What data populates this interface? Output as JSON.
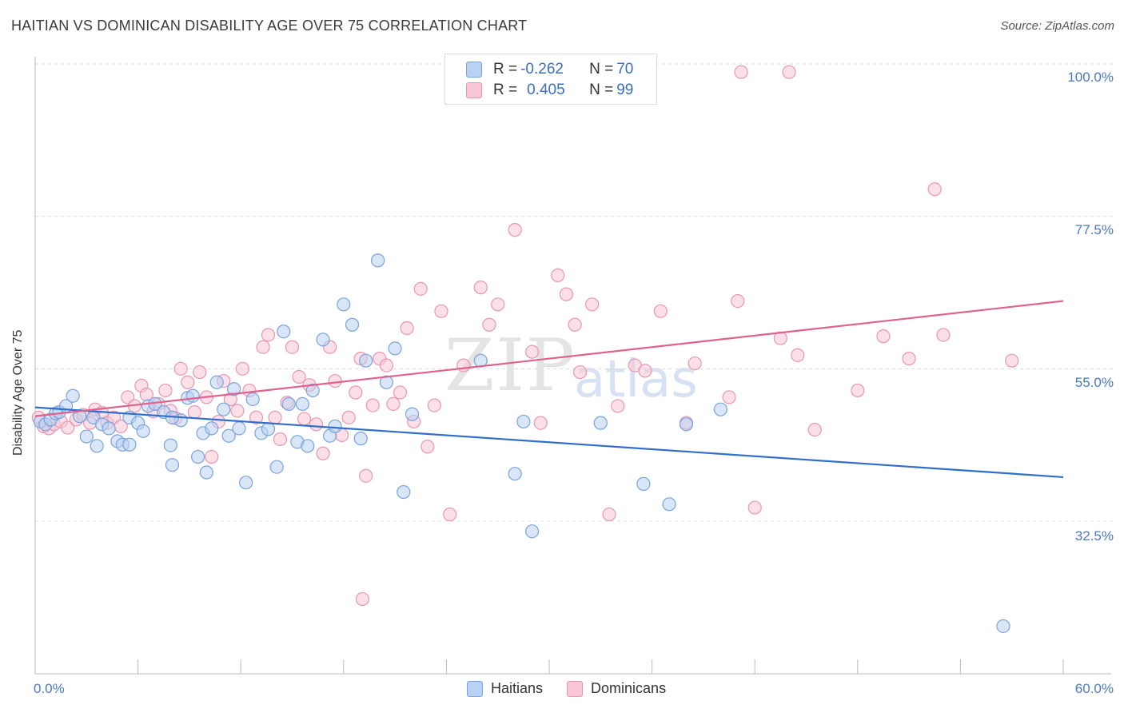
{
  "title": "HAITIAN VS DOMINICAN DISABILITY AGE OVER 75 CORRELATION CHART",
  "source": "Source: ZipAtlas.com",
  "watermark": {
    "zip": "ZIP",
    "atlas": "atlas"
  },
  "legend": {
    "rows": [
      {
        "r_label": "R = ",
        "r_value": "-0.262",
        "n_label": "N = ",
        "n_value": "70"
      },
      {
        "r_label": "R = ",
        "r_value": "0.405",
        "n_label": "N = ",
        "n_value": "99"
      }
    ]
  },
  "colors": {
    "haitians_fill": "#b9d2f3",
    "haitians_stroke": "#7aa3dc",
    "haitians_line": "#2f6fcb",
    "dominicans_fill": "#f8c6d6",
    "dominicans_stroke": "#e996b3",
    "dominicans_line": "#e0628d",
    "grid": "#dcdcdc",
    "tick_label": "#4a79c4"
  },
  "chart_data": {
    "type": "scatter",
    "title": "HAITIAN VS DOMINICAN DISABILITY AGE OVER 75 CORRELATION CHART",
    "xlabel": "",
    "ylabel": "Disability Age Over 75",
    "xlim": [
      0,
      60
    ],
    "ylim": [
      11,
      102
    ],
    "x_tick_labels": [
      "0.0%",
      "60.0%"
    ],
    "y_ticks": [
      32.5,
      55.0,
      77.5,
      100.0
    ],
    "y_tick_labels": [
      "32.5%",
      "55.0%",
      "77.5%",
      "100.0%"
    ],
    "grid": "horizontal dashed",
    "legend_placement": "top-center and bottom",
    "series": [
      {
        "name": "Haitians",
        "r": -0.262,
        "n": 70,
        "trend": {
          "x": [
            0,
            60
          ],
          "y": [
            49.3,
            39.0
          ]
        },
        "points": [
          [
            0.3,
            47.2
          ],
          [
            0.6,
            46.8
          ],
          [
            0.9,
            47.5
          ],
          [
            1.2,
            48.4
          ],
          [
            1.4,
            48.6
          ],
          [
            1.8,
            49.5
          ],
          [
            2.2,
            51.0
          ],
          [
            2.6,
            48.0
          ],
          [
            3.0,
            45.0
          ],
          [
            3.4,
            47.8
          ],
          [
            3.6,
            43.6
          ],
          [
            3.9,
            46.8
          ],
          [
            4.3,
            46.2
          ],
          [
            4.8,
            44.3
          ],
          [
            5.1,
            43.8
          ],
          [
            5.5,
            47.8
          ],
          [
            6.0,
            47.0
          ],
          [
            6.3,
            45.8
          ],
          [
            6.6,
            49.5
          ],
          [
            7.0,
            49.8
          ],
          [
            7.5,
            48.6
          ],
          [
            7.9,
            43.7
          ],
          [
            8.0,
            40.8
          ],
          [
            8.5,
            47.4
          ],
          [
            8.9,
            50.7
          ],
          [
            9.2,
            51.0
          ],
          [
            9.5,
            42.0
          ],
          [
            9.8,
            45.5
          ],
          [
            10.0,
            39.7
          ],
          [
            10.3,
            46.2
          ],
          [
            10.6,
            53.0
          ],
          [
            11.0,
            49.0
          ],
          [
            11.3,
            45.1
          ],
          [
            11.6,
            52.0
          ],
          [
            11.9,
            46.2
          ],
          [
            12.3,
            38.2
          ],
          [
            12.7,
            50.5
          ],
          [
            13.2,
            45.5
          ],
          [
            13.6,
            46.1
          ],
          [
            14.1,
            40.5
          ],
          [
            14.5,
            60.5
          ],
          [
            14.8,
            49.8
          ],
          [
            15.3,
            44.2
          ],
          [
            15.6,
            49.8
          ],
          [
            15.9,
            43.6
          ],
          [
            16.2,
            51.8
          ],
          [
            16.8,
            59.3
          ],
          [
            17.2,
            45.1
          ],
          [
            17.5,
            46.5
          ],
          [
            18.0,
            64.5
          ],
          [
            18.5,
            61.5
          ],
          [
            19.0,
            44.7
          ],
          [
            19.3,
            56.2
          ],
          [
            20.0,
            71.0
          ],
          [
            20.5,
            53.0
          ],
          [
            21.0,
            58.0
          ],
          [
            21.5,
            36.8
          ],
          [
            22.0,
            48.3
          ],
          [
            26.0,
            56.2
          ],
          [
            28.0,
            39.5
          ],
          [
            28.5,
            47.2
          ],
          [
            29.0,
            31.0
          ],
          [
            33.0,
            47.0
          ],
          [
            35.5,
            38.0
          ],
          [
            37.0,
            35.0
          ],
          [
            38.0,
            46.8
          ],
          [
            40.0,
            49.0
          ],
          [
            56.5,
            17.0
          ],
          [
            8.0,
            47.8
          ],
          [
            5.5,
            43.8
          ]
        ]
      },
      {
        "name": "Dominicans",
        "r": 0.405,
        "n": 99,
        "trend": {
          "x": [
            0,
            60
          ],
          "y": [
            48.0,
            65.0
          ]
        },
        "points": [
          [
            0.2,
            47.8
          ],
          [
            0.5,
            46.5
          ],
          [
            0.8,
            46.2
          ],
          [
            1.1,
            46.8
          ],
          [
            1.5,
            47.2
          ],
          [
            1.9,
            46.3
          ],
          [
            2.4,
            47.5
          ],
          [
            2.8,
            48.2
          ],
          [
            3.2,
            47.0
          ],
          [
            3.5,
            49.0
          ],
          [
            3.9,
            48.5
          ],
          [
            4.2,
            47.0
          ],
          [
            4.6,
            47.8
          ],
          [
            5.0,
            46.5
          ],
          [
            5.4,
            50.8
          ],
          [
            5.8,
            49.5
          ],
          [
            6.2,
            52.5
          ],
          [
            6.5,
            51.2
          ],
          [
            6.9,
            48.7
          ],
          [
            7.2,
            49.8
          ],
          [
            7.6,
            51.8
          ],
          [
            7.9,
            48.8
          ],
          [
            8.2,
            47.7
          ],
          [
            8.5,
            55.0
          ],
          [
            8.9,
            53.0
          ],
          [
            9.3,
            48.6
          ],
          [
            9.6,
            54.5
          ],
          [
            10.0,
            50.8
          ],
          [
            10.3,
            42.0
          ],
          [
            10.7,
            47.2
          ],
          [
            11.0,
            53.2
          ],
          [
            11.4,
            50.5
          ],
          [
            11.8,
            48.8
          ],
          [
            12.1,
            55.0
          ],
          [
            12.5,
            51.8
          ],
          [
            12.9,
            47.8
          ],
          [
            13.3,
            58.2
          ],
          [
            13.6,
            60.0
          ],
          [
            14.0,
            47.8
          ],
          [
            14.3,
            44.6
          ],
          [
            14.7,
            50.0
          ],
          [
            15.0,
            58.2
          ],
          [
            15.4,
            53.8
          ],
          [
            15.7,
            47.6
          ],
          [
            16.0,
            52.6
          ],
          [
            16.4,
            46.8
          ],
          [
            16.8,
            42.5
          ],
          [
            17.2,
            58.2
          ],
          [
            17.5,
            53.2
          ],
          [
            17.9,
            45.2
          ],
          [
            18.3,
            47.8
          ],
          [
            18.7,
            51.5
          ],
          [
            19.0,
            56.5
          ],
          [
            19.3,
            39.2
          ],
          [
            19.7,
            49.6
          ],
          [
            20.1,
            56.5
          ],
          [
            20.5,
            55.5
          ],
          [
            20.9,
            49.8
          ],
          [
            21.3,
            51.5
          ],
          [
            21.7,
            61.0
          ],
          [
            22.1,
            47.2
          ],
          [
            22.5,
            66.8
          ],
          [
            22.9,
            43.5
          ],
          [
            23.3,
            49.6
          ],
          [
            23.7,
            63.5
          ],
          [
            19.1,
            21.0
          ],
          [
            24.2,
            33.5
          ],
          [
            25.0,
            55.5
          ],
          [
            26.0,
            67.0
          ],
          [
            26.5,
            61.5
          ],
          [
            27.0,
            64.5
          ],
          [
            28.0,
            75.5
          ],
          [
            29.0,
            57.5
          ],
          [
            29.5,
            47.0
          ],
          [
            30.5,
            68.8
          ],
          [
            31.0,
            66.0
          ],
          [
            31.5,
            61.5
          ],
          [
            31.8,
            54.5
          ],
          [
            32.5,
            64.5
          ],
          [
            33.5,
            33.5
          ],
          [
            34.0,
            49.5
          ],
          [
            35.0,
            55.5
          ],
          [
            35.6,
            54.7
          ],
          [
            36.5,
            63.5
          ],
          [
            38.5,
            55.8
          ],
          [
            38.0,
            47.0
          ],
          [
            40.5,
            50.8
          ],
          [
            41.0,
            65.0
          ],
          [
            41.2,
            98.8
          ],
          [
            42.0,
            34.5
          ],
          [
            43.5,
            59.5
          ],
          [
            44.0,
            98.8
          ],
          [
            44.5,
            57.0
          ],
          [
            45.5,
            46.0
          ],
          [
            48.0,
            51.8
          ],
          [
            49.5,
            59.8
          ],
          [
            51.0,
            56.5
          ],
          [
            52.5,
            81.5
          ],
          [
            53.0,
            60.0
          ],
          [
            57.0,
            56.2
          ]
        ]
      }
    ]
  },
  "axes": {
    "ylabel": "Disability Age Over 75",
    "x_left": "0.0%",
    "x_right": "60.0%",
    "y_ticks": [
      "100.0%",
      "77.5%",
      "55.0%",
      "32.5%"
    ]
  },
  "bottom_legend": {
    "items": [
      "Haitians",
      "Dominicans"
    ]
  }
}
